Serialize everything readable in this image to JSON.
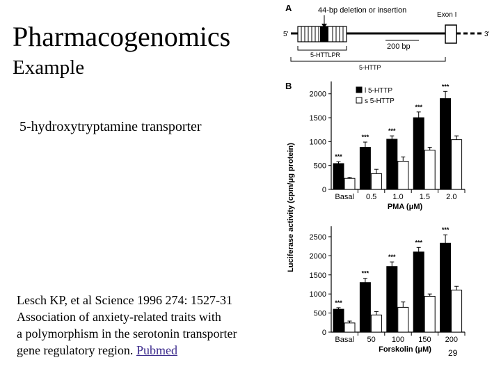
{
  "slide": {
    "title": "Pharmacogenomics",
    "subtitle": "Example",
    "topic": "5-hydroxytryptamine transporter",
    "citation": {
      "line1": "Lesch KP, et al Science 1996 274: 1527-31",
      "line2": "Association of anxiety-related traits with",
      "line3": "a polymorphism in the serotonin transporter",
      "line4": "gene regulatory region.",
      "link": "Pubmed"
    },
    "slide_number": "29"
  },
  "figure": {
    "panel_a": {
      "letter": "A",
      "deletion_label": "44-bp deletion or insertion",
      "exon_label": "Exon I",
      "five_prime": "5'",
      "three_prime": "3'",
      "scale_label": "200 bp",
      "httlpr_label": "5-HTTLPR",
      "htt_label": "5-HTTP"
    },
    "panel_b": {
      "letter": "B",
      "shared_ylabel": "Luciferase activity (cpm/μg protein)"
    }
  },
  "chart_data": [
    {
      "type": "bar",
      "legend": [
        "l 5-HTTP",
        "s 5-HTTP"
      ],
      "legend_colors": [
        "#000000",
        "#ffffff"
      ],
      "categories": [
        "Basal",
        "0.5",
        "1.0",
        "1.5",
        "2.0"
      ],
      "series": [
        {
          "name": "l 5-HTTP",
          "values": [
            540,
            880,
            1050,
            1500,
            1900
          ],
          "errors": [
            40,
            110,
            70,
            120,
            150
          ]
        },
        {
          "name": "s 5-HTTP",
          "values": [
            230,
            330,
            590,
            820,
            1040
          ],
          "errors": [
            20,
            90,
            90,
            60,
            80
          ]
        }
      ],
      "significance": [
        "***",
        "***",
        "***",
        "***",
        "***"
      ],
      "xlabel": "PMA (μM)",
      "yticks": [
        0,
        500,
        1000,
        1500,
        2000
      ],
      "ylim": [
        0,
        2200
      ]
    },
    {
      "type": "bar",
      "categories": [
        "Basal",
        "50",
        "100",
        "150",
        "200"
      ],
      "series": [
        {
          "name": "l 5-HTTP",
          "values": [
            600,
            1300,
            1720,
            2100,
            2330
          ],
          "errors": [
            40,
            110,
            120,
            120,
            220
          ]
        },
        {
          "name": "s 5-HTTP",
          "values": [
            240,
            450,
            650,
            940,
            1100
          ],
          "errors": [
            50,
            90,
            140,
            60,
            100
          ]
        }
      ],
      "significance": [
        "***",
        "***",
        "***",
        "***",
        "***"
      ],
      "xlabel": "Forskolin (μM)",
      "yticks": [
        0,
        500,
        1000,
        1500,
        2000,
        2500
      ],
      "ylim": [
        0,
        2700
      ]
    }
  ]
}
